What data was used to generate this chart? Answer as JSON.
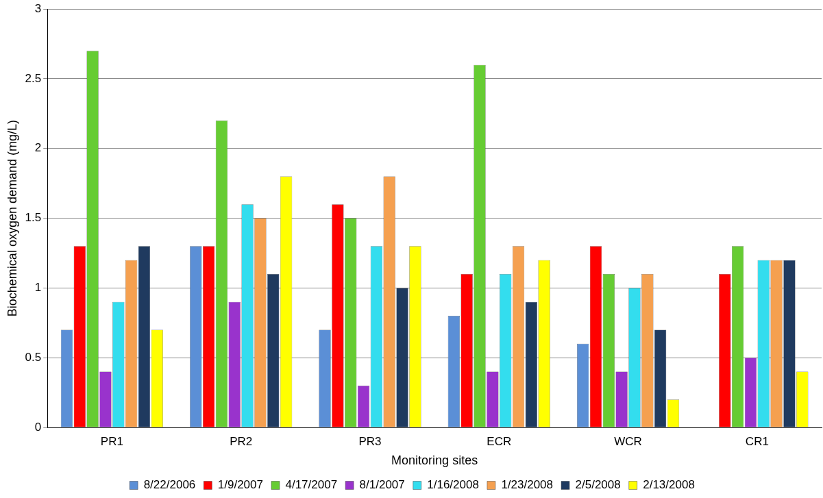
{
  "chart_data": {
    "type": "bar",
    "xlabel": "Monitoring sites",
    "ylabel": "Biochemical oxygen demand (mg/L)",
    "categories": [
      "PR1",
      "PR2",
      "PR3",
      "ECR",
      "WCR",
      "CR1"
    ],
    "series": [
      {
        "name": "8/22/2006",
        "color": "#5b8fd6",
        "values": [
          0.7,
          1.3,
          0.7,
          0.8,
          0.6,
          null
        ]
      },
      {
        "name": "1/9/2007",
        "color": "#ff0000",
        "values": [
          1.3,
          1.3,
          1.6,
          1.1,
          1.3,
          1.1
        ]
      },
      {
        "name": "4/17/2007",
        "color": "#66cc33",
        "values": [
          2.7,
          2.2,
          1.5,
          2.6,
          1.1,
          1.3
        ]
      },
      {
        "name": "8/1/2007",
        "color": "#9933cc",
        "values": [
          0.4,
          0.9,
          0.3,
          0.4,
          0.4,
          0.5
        ]
      },
      {
        "name": "1/16/2008",
        "color": "#33ddee",
        "values": [
          0.9,
          1.6,
          1.3,
          1.1,
          1.0,
          1.2
        ]
      },
      {
        "name": "1/23/2008",
        "color": "#f5a050",
        "values": [
          1.2,
          1.5,
          1.8,
          1.3,
          1.1,
          1.2
        ]
      },
      {
        "name": "2/5/2008",
        "color": "#1f3a5f",
        "values": [
          1.3,
          1.1,
          1.0,
          0.9,
          0.7,
          1.2
        ]
      },
      {
        "name": "2/13/2008",
        "color": "#ffff00",
        "values": [
          0.7,
          1.8,
          1.3,
          1.2,
          0.2,
          0.4
        ]
      }
    ],
    "ylim": [
      0,
      3
    ],
    "yticks": [
      0,
      0.5,
      1,
      1.5,
      2,
      2.5,
      3
    ],
    "grid": "y",
    "legend": "bottom"
  }
}
